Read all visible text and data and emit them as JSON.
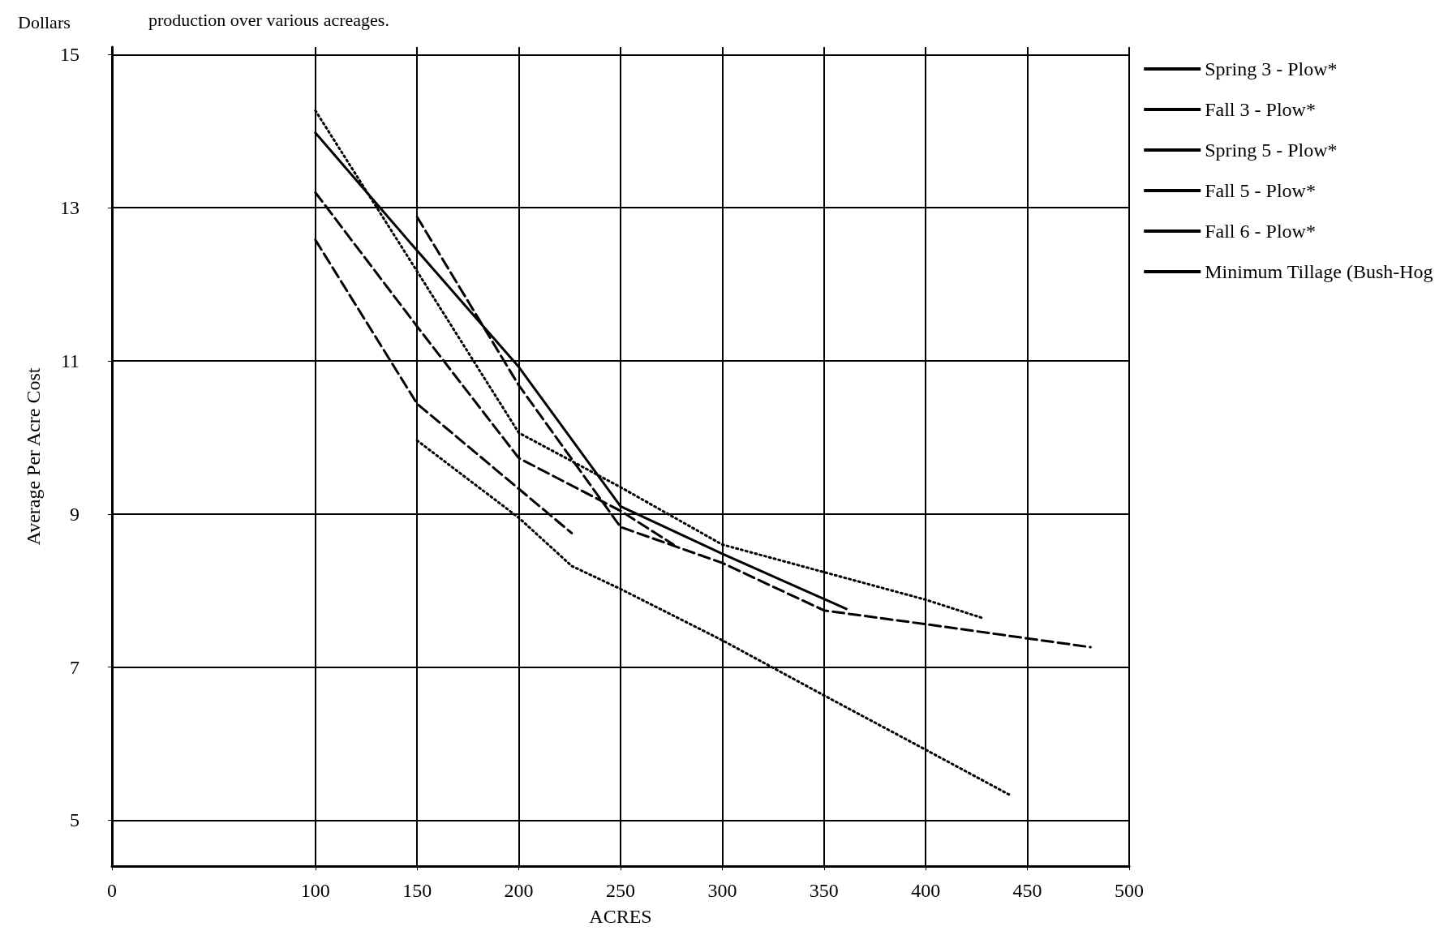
{
  "chart_data": {
    "type": "line",
    "title": "production over various acreages.",
    "xlabel": "ACRES",
    "ylabel": "Average Per Acre Cost",
    "annotations": [
      "Dollars"
    ],
    "xlim": [
      0,
      500
    ],
    "xticks": [
      0,
      100,
      150,
      200,
      250,
      300,
      350,
      400,
      450,
      500
    ],
    "ylim": [
      4.4,
      15.1
    ],
    "yticks": [
      5,
      7,
      9,
      11,
      13,
      15
    ],
    "grid": true,
    "legend": "top right",
    "marker": "none",
    "series": [
      {
        "name": "Spring 3 - Plow*",
        "color": "#000000",
        "line_style": "dashed",
        "x": [
          100,
          150,
          226
        ],
        "values": [
          12.58,
          10.44,
          8.75
        ]
      },
      {
        "name": "Fall 3 - Plow*",
        "color": "#000000",
        "line_style": "dashed",
        "x": [
          100,
          150,
          200,
          250,
          276
        ],
        "values": [
          13.2,
          11.45,
          9.73,
          9.04,
          8.6
        ]
      },
      {
        "name": "Spring 5 - Plow*",
        "color": "#000000",
        "line_style": "solid",
        "x": [
          100,
          150,
          200,
          250,
          300,
          361
        ],
        "values": [
          13.98,
          12.44,
          10.92,
          9.1,
          8.48,
          7.76
        ]
      },
      {
        "name": "Fall 5 - Plow*",
        "color": "#000000",
        "line_style": "dotted",
        "x": [
          100,
          150,
          200,
          250,
          300,
          350,
          400,
          428
        ],
        "values": [
          14.27,
          12.17,
          10.06,
          9.35,
          8.6,
          8.24,
          7.88,
          7.64
        ]
      },
      {
        "name": "Fall 6 - Plow*",
        "color": "#000000",
        "line_style": "dashed",
        "x": [
          150,
          200,
          250,
          300,
          350,
          400,
          481
        ],
        "values": [
          12.88,
          10.68,
          8.83,
          8.36,
          7.74,
          7.56,
          7.26
        ]
      },
      {
        "name": "Minimum Tillage (Bush-Hog",
        "color": "#000000",
        "line_style": "dotted",
        "x": [
          150,
          200,
          226,
          250,
          300,
          350,
          400,
          442
        ],
        "values": [
          9.96,
          8.95,
          8.32,
          8.02,
          7.35,
          6.63,
          5.92,
          5.32
        ]
      }
    ]
  }
}
